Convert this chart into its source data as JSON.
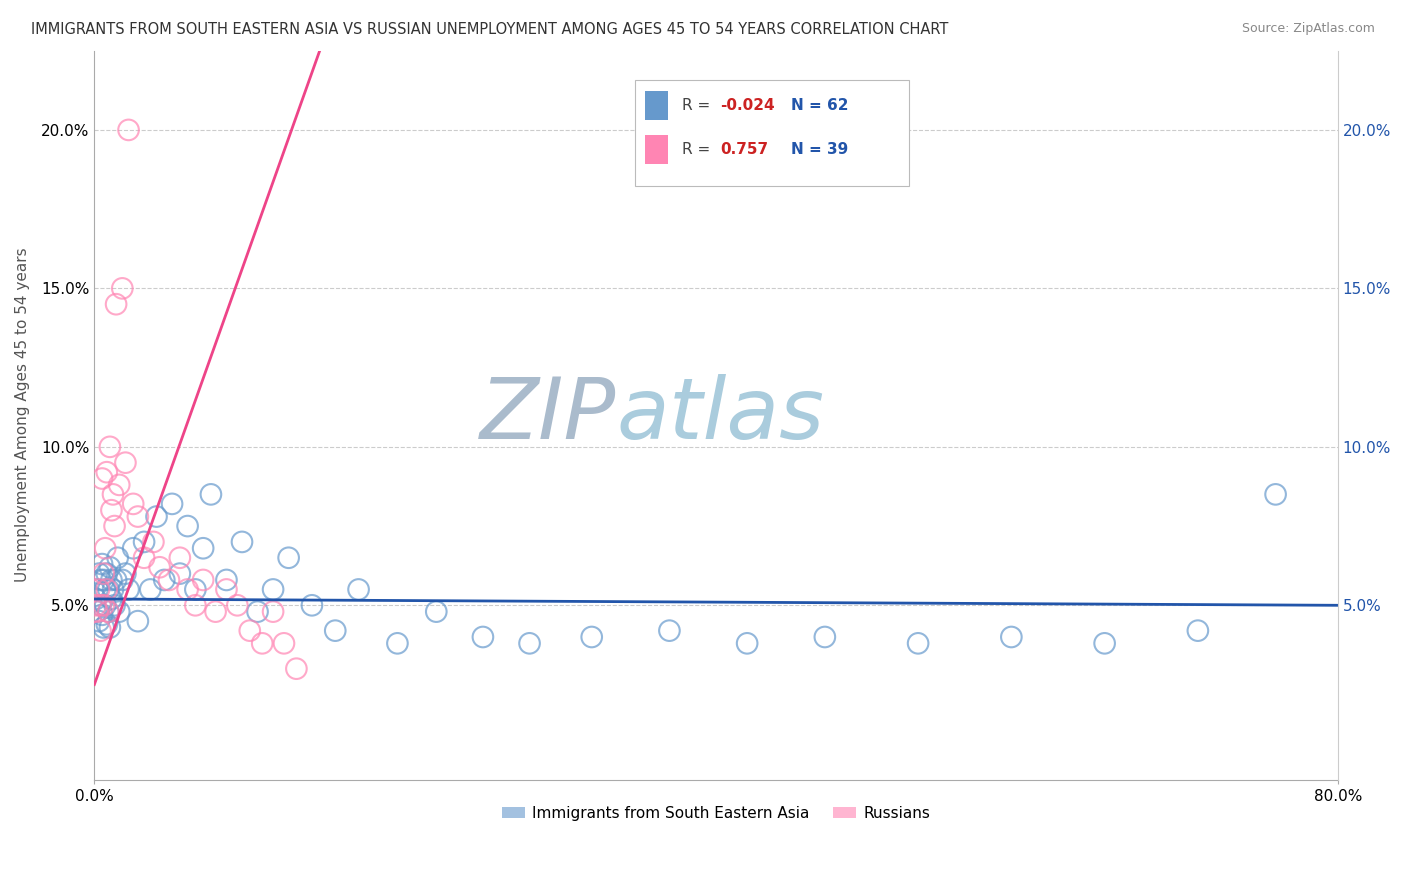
{
  "title": "IMMIGRANTS FROM SOUTH EASTERN ASIA VS RUSSIAN UNEMPLOYMENT AMONG AGES 45 TO 54 YEARS CORRELATION CHART",
  "source": "Source: ZipAtlas.com",
  "ylabel": "Unemployment Among Ages 45 to 54 years",
  "series1_R": "-0.024",
  "series1_N": "62",
  "series2_R": "0.757",
  "series2_N": "39",
  "blue_color": "#6699CC",
  "pink_color": "#FF85B3",
  "blue_line_color": "#2255AA",
  "pink_line_color": "#EE4488",
  "watermark_zip": "ZIP",
  "watermark_atlas": "atlas",
  "watermark_zip_color": "#AABBCC",
  "watermark_atlas_color": "#AACCDD",
  "background_color": "#FFFFFF",
  "xlim": [
    0.0,
    0.8
  ],
  "ylim": [
    -0.005,
    0.225
  ],
  "ytick_vals": [
    0.05,
    0.1,
    0.15,
    0.2
  ],
  "ytick_labels": [
    "5.0%",
    "10.0%",
    "15.0%",
    "20.0%"
  ],
  "xtick_vals": [
    0.0,
    0.8
  ],
  "xtick_labels": [
    "0.0%",
    "80.0%"
  ],
  "legend_entries": [
    "Immigrants from South Eastern Asia",
    "Russians"
  ],
  "blue_scatter_x": [
    0.001,
    0.002,
    0.002,
    0.003,
    0.003,
    0.004,
    0.004,
    0.005,
    0.005,
    0.006,
    0.006,
    0.007,
    0.007,
    0.008,
    0.008,
    0.009,
    0.009,
    0.01,
    0.01,
    0.011,
    0.011,
    0.012,
    0.013,
    0.014,
    0.015,
    0.016,
    0.018,
    0.02,
    0.022,
    0.025,
    0.028,
    0.032,
    0.036,
    0.04,
    0.045,
    0.05,
    0.055,
    0.06,
    0.065,
    0.07,
    0.075,
    0.085,
    0.095,
    0.105,
    0.115,
    0.125,
    0.14,
    0.155,
    0.17,
    0.195,
    0.22,
    0.25,
    0.28,
    0.32,
    0.37,
    0.42,
    0.47,
    0.53,
    0.59,
    0.65,
    0.71,
    0.76
  ],
  "blue_scatter_y": [
    0.052,
    0.055,
    0.048,
    0.06,
    0.045,
    0.058,
    0.05,
    0.063,
    0.047,
    0.058,
    0.043,
    0.055,
    0.05,
    0.06,
    0.044,
    0.055,
    0.048,
    0.062,
    0.043,
    0.058,
    0.052,
    0.055,
    0.05,
    0.058,
    0.065,
    0.048,
    0.058,
    0.06,
    0.055,
    0.068,
    0.045,
    0.07,
    0.055,
    0.078,
    0.058,
    0.082,
    0.06,
    0.075,
    0.055,
    0.068,
    0.085,
    0.058,
    0.07,
    0.048,
    0.055,
    0.065,
    0.05,
    0.042,
    0.055,
    0.038,
    0.048,
    0.04,
    0.038,
    0.04,
    0.042,
    0.038,
    0.04,
    0.038,
    0.04,
    0.038,
    0.042,
    0.085
  ],
  "pink_scatter_x": [
    0.001,
    0.002,
    0.003,
    0.004,
    0.004,
    0.005,
    0.006,
    0.006,
    0.007,
    0.008,
    0.008,
    0.009,
    0.01,
    0.011,
    0.012,
    0.013,
    0.014,
    0.016,
    0.018,
    0.02,
    0.022,
    0.025,
    0.028,
    0.032,
    0.038,
    0.042,
    0.048,
    0.055,
    0.06,
    0.065,
    0.07,
    0.078,
    0.085,
    0.092,
    0.1,
    0.108,
    0.115,
    0.122,
    0.13
  ],
  "pink_scatter_y": [
    0.05,
    0.048,
    0.055,
    0.05,
    0.042,
    0.09,
    0.06,
    0.05,
    0.068,
    0.055,
    0.092,
    0.048,
    0.1,
    0.08,
    0.085,
    0.075,
    0.145,
    0.088,
    0.15,
    0.095,
    0.2,
    0.082,
    0.078,
    0.065,
    0.07,
    0.062,
    0.058,
    0.065,
    0.055,
    0.05,
    0.058,
    0.048,
    0.055,
    0.05,
    0.042,
    0.038,
    0.048,
    0.038,
    0.03
  ],
  "blue_line_x": [
    0.0,
    0.8
  ],
  "blue_line_y_start": 0.052,
  "blue_line_y_end": 0.05,
  "pink_line_x_start": 0.0,
  "pink_line_y_start": 0.025,
  "pink_line_x_end": 0.145,
  "pink_line_y_end": 0.225
}
